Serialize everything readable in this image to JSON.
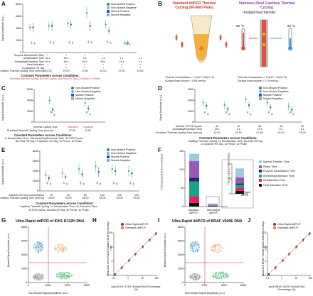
{
  "panels": {
    "A": {
      "letter": "A",
      "ylabel": "Signal Amplitude (a.u.)",
      "yticks": [
        "8000",
        "6000",
        "4000",
        "2000",
        "0"
      ],
      "legend": [
        "Non-Mutant Positive",
        "Non-Mutant Negative",
        "Mutant Positive",
        "Mutant Negative"
      ],
      "rows": [
        {
          "label": "Enzyme Deactivation Step",
          "vals": [
            "+",
            "+",
            "+",
            "-",
            "-",
            "-"
          ]
        },
        {
          "label": "Denaturation Time",
          "vals": [
            "30 s",
            "30 s",
            "3 s",
            "1 s",
            "1 s",
            "1 s"
          ]
        },
        {
          "label": "Annealing/Extension Time",
          "vals": [
            "60 s",
            "60 s",
            "60 s",
            "60 s",
            "15 s",
            "1 s"
          ]
        },
        {
          "label": "Heat Activation",
          "vals": [
            "+",
            "+",
            "+",
            "+",
            "+",
            "+"
          ]
        },
        {
          "label": "1X Aptamer HS Taq",
          "vals": [
            "",
            "+",
            "+",
            "+",
            "+",
            "+"
          ]
        },
        {
          "label": "Predicted Thermal Cycling Time (mm:ss)",
          "vals": [
            "157:00",
            "97:00",
            "77:00",
            "67:00",
            "37:00",
            "37:00"
          ]
        }
      ],
      "const_title": "Constant Parameters Across Conditions:",
      "const_text": "Standard thermal cycling, 40 PCR Cycles, Bio-Rad HS Taq, 1x Primer, 1x Probe"
    },
    "B": {
      "letter": "B",
      "left_title": "Standard ddPCR Thermal Cycling (96-Well Plate)",
      "right_title": "Stainless-Steel Capillary Thermal Cycling",
      "right_sub": "~Instant heat transfer",
      "temp1": "95 °C",
      "temp2": "62 °C",
      "left_cond": "Thermal Conductance = 7.3x10⁻⁵ W/(m²·K)",
      "left_area": "Surface Area:Volume = 0.96 mm²/µL",
      "right_cond": "Thermal Conductance = 1.5x10⁻⁵ W/(m²·K)",
      "right_area": "Surface Area:Volume = 3.75 mm²/µL"
    },
    "C": {
      "letter": "C",
      "ylabel": "Signal Amplitude (a.u.)",
      "yticks": [
        "6000",
        "4000",
        "2000",
        "0"
      ],
      "legend": [
        "Non-Mutant Positive",
        "Non-Mutant Negative",
        "Mutant Positive",
        "Mutant Negative"
      ],
      "row1_label": "Thermal Cycling Type",
      "row1_vals": [
        "Standard",
        "Capillary"
      ],
      "row2_label": "Predicted Thermal Cycling Time (mm:ss)",
      "row2_vals": [
        "37:00",
        "12:00"
      ],
      "const_title": "Constant Parameters Across Conditions:",
      "const_text1": "1s Denaturation Time, 15s Annealing/Extension Time, 40 PCR Cycles",
      "const_text2": "Bio-Rad HS Taq, 1X Aptamer HS Taq, 1x Primer, 1x Probe"
    },
    "D": {
      "letter": "D",
      "ylabel": "Signal Amplitude (a.u.)",
      "yticks": [
        "6000",
        "4000",
        "2000",
        "0"
      ],
      "legend": [
        "Non-Mutant Positive",
        "Non-Mutant Negative",
        "Mutant Positive",
        "Mutant Negative"
      ],
      "rows": [
        {
          "label": "Number of PCR Cycles",
          "vals": [
            "40",
            "40",
            "45",
            "45",
            "45"
          ]
        },
        {
          "label": "Annealing/Extension Time",
          "vals": [
            "15 s",
            "1 s",
            "15 s",
            "5 s",
            "1 s"
          ]
        },
        {
          "label": "Predicted Thermal Cycling Time (mm:ss)",
          "vals": [
            "12:00",
            "07:30",
            "07:30",
            "04:30",
            "03:00"
          ]
        }
      ],
      "const_title": "Constant Parameters Across Conditions:",
      "const_text1": "Capillary Thermal Cycling, 1s Denaturation Time, Bio-Rad HS Taq,",
      "const_text2": "1X Aptamer HS Taq, 1x Primer, 1x Probe"
    },
    "E": {
      "letter": "E",
      "ylabel": "Signal Amplitude (a.u.)",
      "yticks": [
        "8000",
        "6000",
        "4000",
        "2000",
        "0"
      ],
      "legend": [
        "Non-Mutant Positive",
        "Non-Mutant Negative",
        "Mutant Positive",
        "Mutant Negative"
      ],
      "rows": [
        {
          "label": "Aptamer HS Taq Concentration",
          "vals": [
            "1X",
            "4X",
            "8X",
            "16X",
            "22X",
            "32X"
          ]
        },
        {
          "label": "Predicted Thermal Cycling Time (mm:ss)",
          "vals": [
            "03:00",
            "03:00",
            "03:00",
            "03:00",
            "03:00",
            "03:00"
          ]
        }
      ],
      "const_title": "Constant Parameters Across Conditions:",
      "const_text1": "Capillary Thermal Cycling, 1s Denaturation Time, 1s Extension Time,",
      "const_text2": "45 PCR cycles, Bio-Rad HS Taq, 4x Primer, 4x Probe"
    },
    "F": {
      "letter": "F",
      "ylabel": "Thermal Cycling Time (minutes)",
      "yticks": [
        "150",
        "100",
        "50",
        "0"
      ],
      "inset_ylabel": "Thermal Cycling Time (minutes)",
      "inset_yticks": [
        "10",
        "5",
        "0"
      ],
      "cat1": "Standard ddPCR",
      "cat2": "Ultra-Rapid ddPCR",
      "inset_cat": "Ultra-Rapid ddPCR",
      "legend": [
        {
          "name": "Manual Transfer Time",
          "color": "#9ecae1"
        },
        {
          "name": "Ramp Time",
          "color": "#9b59b6"
        },
        {
          "name": "Enzyme Deactivation Time",
          "color": "#1f2a6b"
        },
        {
          "name": "Annealing/Extension Time",
          "color": "#17a589"
        },
        {
          "name": "Denaturation Time",
          "color": "#e91e63"
        },
        {
          "name": "Heat Activation Time",
          "color": "#111111"
        }
      ]
    },
    "G": {
      "letter": "G",
      "title": "Ultra-Rapid ddPCR of IDH1 R132H DNA",
      "xlabel": "Non-Mutant Signal Amplitude (a.u.)",
      "ylabel": "Mutant Signal Amplitude (a.u.)",
      "xticks": [
        "0",
        "2000",
        "4000",
        "6000"
      ],
      "yticks": [
        "8000",
        "6000",
        "4000",
        "2000",
        "0"
      ]
    },
    "H": {
      "letter": "H",
      "xlabel": "Input IDH1 R132H Mutant DNA Percentage (%)",
      "ylabel": "Measured IDH1 R132H Mutant DNA Percentage (%)",
      "xticks": [
        "0.1",
        "1",
        "10",
        "100"
      ],
      "yticks": [
        "100",
        "10",
        "1",
        "0.1"
      ],
      "legend": [
        "Ultra-Rapid ddPCR",
        "Standard ddPCR"
      ]
    },
    "I": {
      "letter": "I",
      "title": "Ultra-Rapid ddPCR of BRAF V600E DNA",
      "xlabel": "Non-Mutant Signal Amplitude (a.u.)",
      "ylabel": "Mutant Signal Amplitude (a.u.)",
      "xticks": [
        "0",
        "2000",
        "4000",
        "6000"
      ],
      "yticks": [
        "8000",
        "6000",
        "4000",
        "2000",
        "0"
      ]
    },
    "J": {
      "letter": "J",
      "xlabel": "Input BRAF V600E Mutant DNA Percentage (%)",
      "ylabel": "Measured BRAF V600E Mutant DNA Percentage (%)",
      "xticks": [
        "0.1",
        "1",
        "10",
        "100"
      ],
      "yticks": [
        "100",
        "10",
        "1",
        "0.1"
      ],
      "legend": [
        "Ultra-Rapid ddPCR",
        "Standard ddPCR"
      ]
    }
  },
  "colors": {
    "nonmut_pos": "#2e8b57",
    "nonmut_neg": "#7fb3d5",
    "mut_pos": "#1a5fb4",
    "mut_neg": "#9ab",
    "green": "#3cb371",
    "blue": "#1f77b4",
    "red": "#c0392b",
    "purple": "#6c3483",
    "orange": "#e67e22"
  }
}
